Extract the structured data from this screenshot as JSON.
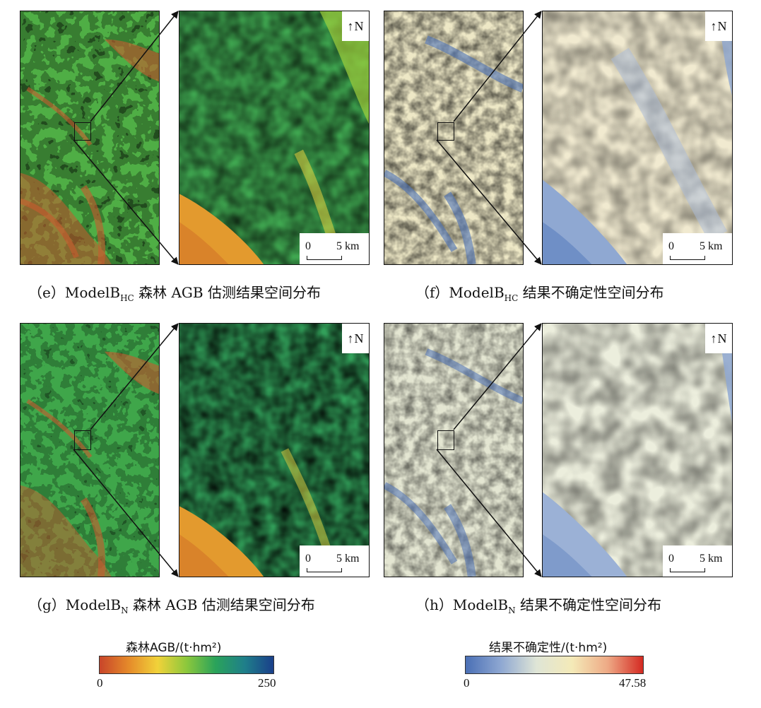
{
  "panels": {
    "e": {
      "north": "N",
      "scale_zero": "0",
      "scale_label": "5 km",
      "caption_prefix": "（e）ModelB",
      "caption_sub": "HC",
      "caption_suffix": " 森林 AGB 估测结果空间分布"
    },
    "f": {
      "north": "N",
      "scale_zero": "0",
      "scale_label": "5 km",
      "caption_prefix": "（f）ModelB",
      "caption_sub": "HC",
      "caption_suffix": " 结果不确定性空间分布"
    },
    "g": {
      "north": "N",
      "scale_zero": "0",
      "scale_label": "5 km",
      "caption_prefix": "（g）ModelB",
      "caption_sub": "N",
      "caption_suffix": " 森林 AGB 估测结果空间分布"
    },
    "h": {
      "north": "N",
      "scale_zero": "0",
      "scale_label": "5 km",
      "caption_prefix": "（h）ModelB",
      "caption_sub": "N",
      "caption_suffix": " 结果不确定性空间分布"
    }
  },
  "legend_agb": {
    "title": "森林AGB/(t·hm²)",
    "min": "0",
    "max": "250",
    "colors": [
      "#c8452a",
      "#e58a2a",
      "#f1d23a",
      "#8cc83c",
      "#2aa35a",
      "#1f7f8a",
      "#1a3f8a"
    ]
  },
  "legend_unc": {
    "title": "结果不确定性/(t·hm²)",
    "min": "0",
    "max": "47.58",
    "colors": [
      "#4a6fb5",
      "#8fa8d2",
      "#dfe5d6",
      "#f4eab8",
      "#eeaa86",
      "#d42a22"
    ]
  }
}
